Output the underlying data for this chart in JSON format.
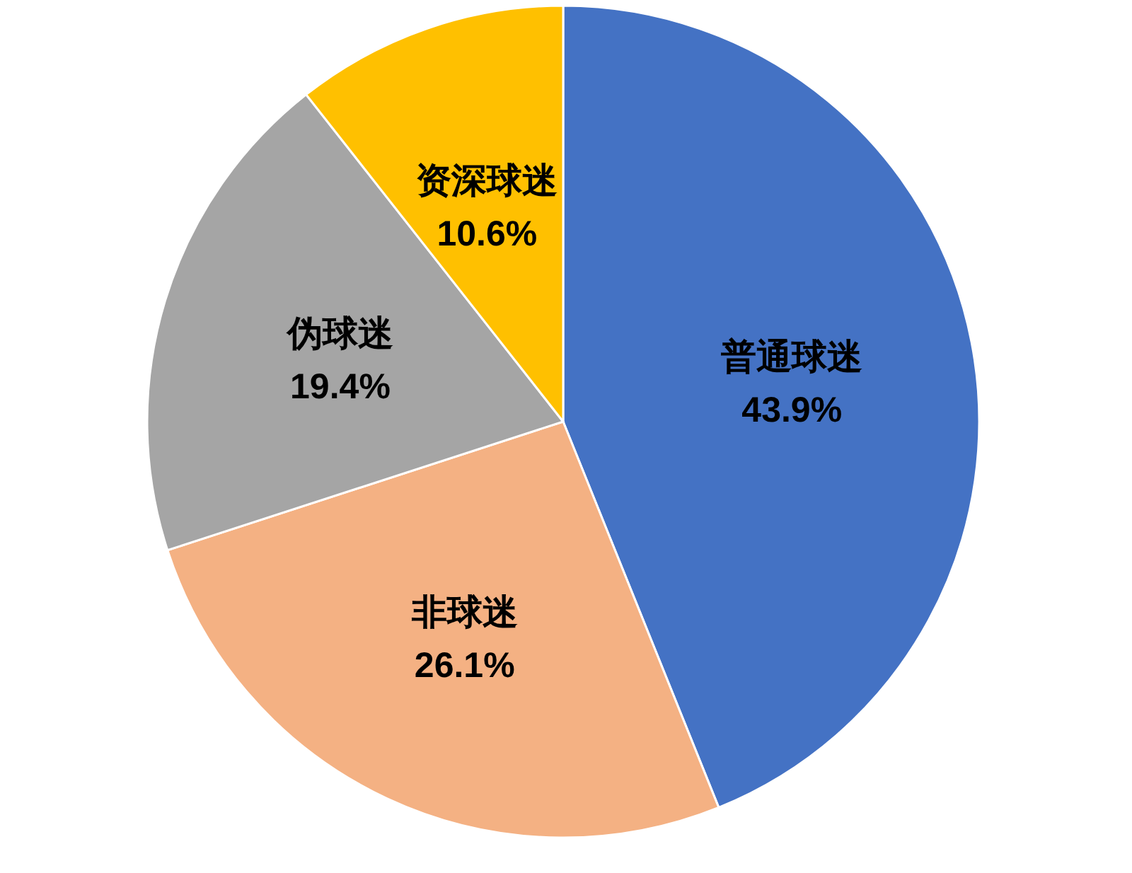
{
  "chart_data": {
    "type": "pie",
    "categories": [
      "普通球迷",
      "非球迷",
      "伪球迷",
      "资深球迷"
    ],
    "values": [
      43.9,
      26.1,
      19.4,
      10.6
    ],
    "colors": [
      "#4472c4",
      "#f4b183",
      "#a5a5a5",
      "#ffc000"
    ],
    "value_labels": [
      "43.9%",
      "26.1%",
      "19.4%",
      "10.6%"
    ],
    "legend": false
  }
}
